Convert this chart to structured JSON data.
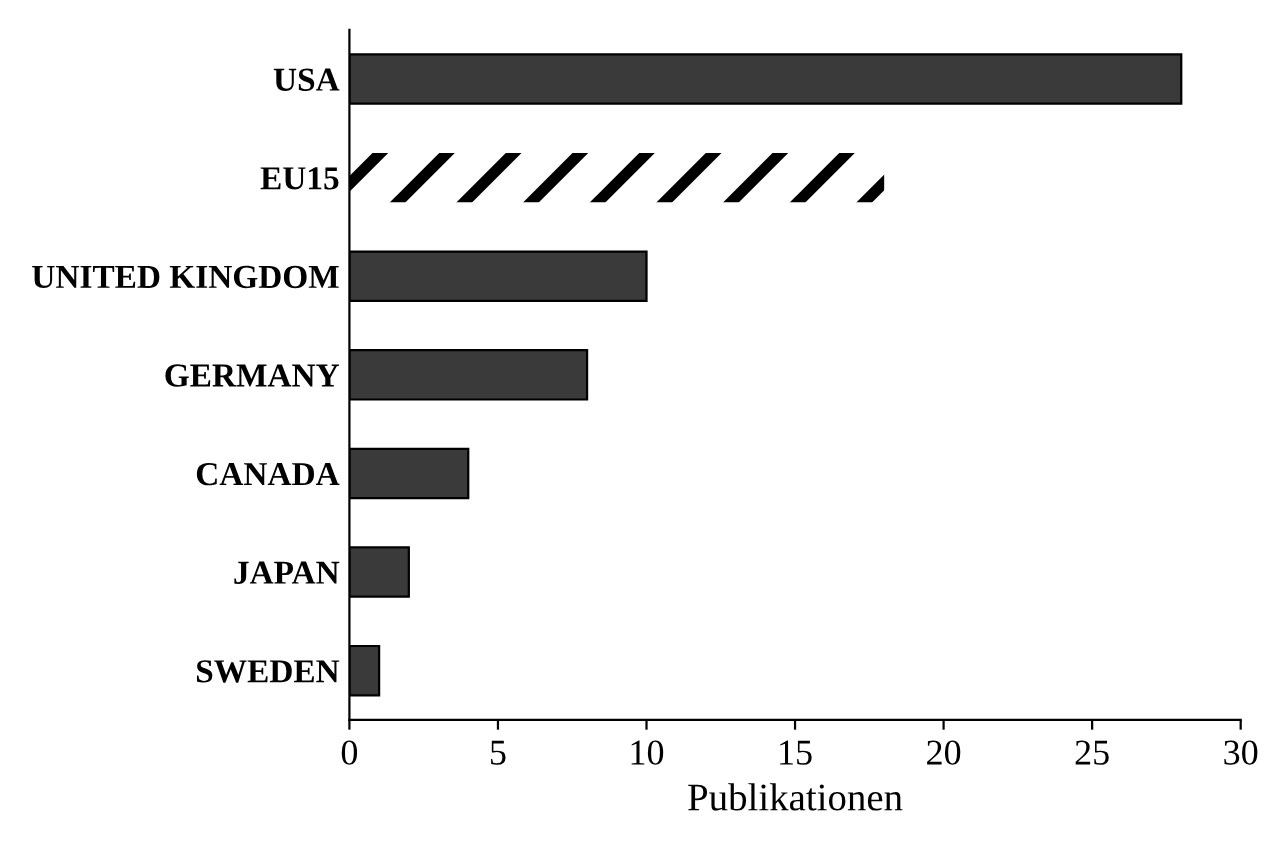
{
  "chart_data": {
    "type": "bar",
    "orientation": "horizontal",
    "categories": [
      "USA",
      "EU15",
      "UNITED KINGDOM",
      "GERMANY",
      "CANADA",
      "JAPAN",
      "SWEDEN"
    ],
    "values": [
      28,
      18,
      10,
      8,
      4,
      2,
      1
    ],
    "colors": [
      "#3a3a3a",
      "#ffffff",
      "#3a3a3a",
      "#3a3a3a",
      "#3a3a3a",
      "#3a3a3a",
      "#3a3a3a"
    ],
    "xlabel": "Publikationen",
    "xlim": [
      0,
      30
    ],
    "xticks": [
      0,
      5,
      10,
      15,
      20,
      25,
      30
    ],
    "grid": false,
    "legend": false
  }
}
